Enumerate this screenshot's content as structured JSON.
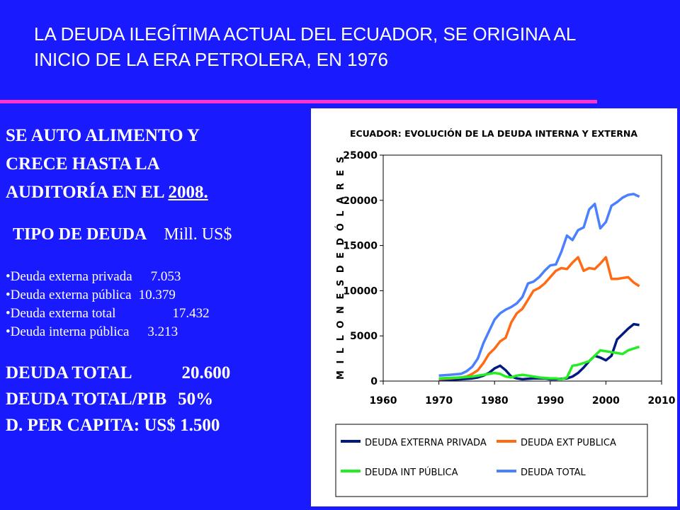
{
  "slide_title": "LA DEUDA ILEGÍTIMA ACTUAL DEL ECUADOR, SE ORIGINA AL INICIO DE LA ERA PETROLERA, EN 1976",
  "left": {
    "headline_1": "SE AUTO ALIMENTO Y",
    "headline_2": "CRECE HASTA LA",
    "headline_3": "AUDITORÍA EN EL ",
    "headline_year": "2008.",
    "tipo_label": "TIPO DE DEUDA",
    "tipo_unit": "Mill. US$",
    "items": [
      {
        "label": "Deuda externa privada",
        "value": "7.053"
      },
      {
        "label": "Deuda externa pública",
        "value": "10.379"
      },
      {
        "label": "Deuda externa total",
        "value": "17.432"
      },
      {
        "label": "Deuda interna pública",
        "value": "3.213"
      }
    ],
    "total_label": "DEUDA TOTAL",
    "total_value": "20.600",
    "pib_label": "DEUDA TOTAL/PIB",
    "pib_value": "50%",
    "per_capita_label": "D. PER CAPITA:",
    "per_capita_value": "US$ 1.500"
  },
  "chart_data": {
    "type": "line",
    "title": "ECUADOR: EVOLUCIÓN DE LA DEUDA INTERNA Y EXTERNA",
    "ylabel": "M I L L O N E S D E D Ó L A R E S",
    "xlabel": "",
    "xlim": [
      1960,
      2010
    ],
    "ylim": [
      0,
      25000
    ],
    "x_ticks": [
      1960,
      1970,
      1980,
      1990,
      2000,
      2010
    ],
    "y_ticks": [
      0,
      5000,
      10000,
      15000,
      20000,
      25000
    ],
    "grid": false,
    "legend_position": "bottom",
    "series": [
      {
        "name": "DEUDA EXTERNA PRIVADA",
        "color": "#001a80",
        "x": [
          1970,
          1972,
          1974,
          1976,
          1977,
          1978,
          1979,
          1980,
          1981,
          1982,
          1983,
          1984,
          1985,
          1986,
          1987,
          1988,
          1989,
          1990,
          1991,
          1992,
          1993,
          1994,
          1995,
          1996,
          1997,
          1998,
          1999,
          2000,
          2001,
          2002,
          2003,
          2004,
          2005,
          2006
        ],
        "y": [
          100,
          150,
          200,
          300,
          400,
          600,
          900,
          1400,
          1700,
          1200,
          500,
          300,
          200,
          250,
          300,
          300,
          300,
          200,
          200,
          250,
          300,
          500,
          900,
          1500,
          2200,
          2800,
          2600,
          2300,
          2800,
          4600,
          5200,
          5800,
          6300,
          6200
        ]
      },
      {
        "name": "DEUDA EXT PUBLICA",
        "color": "#ff6a13",
        "x": [
          1970,
          1971,
          1972,
          1973,
          1974,
          1975,
          1976,
          1977,
          1978,
          1979,
          1980,
          1981,
          1982,
          1983,
          1984,
          1985,
          1986,
          1987,
          1988,
          1989,
          1990,
          1991,
          1992,
          1993,
          1994,
          1995,
          1996,
          1997,
          1998,
          1999,
          2000,
          2001,
          2002,
          2003,
          2004,
          2005,
          2006
        ],
        "y": [
          200,
          250,
          300,
          350,
          400,
          500,
          800,
          1200,
          2000,
          3000,
          3600,
          4400,
          4800,
          6500,
          7500,
          8000,
          9000,
          10000,
          10300,
          10800,
          11500,
          12200,
          12500,
          12400,
          13100,
          13700,
          12200,
          12500,
          12400,
          13000,
          13700,
          11300,
          11300,
          11400,
          11500,
          10900,
          10500
        ]
      },
      {
        "name": "DEUDA INT PÚBLICA",
        "color": "#22ee22",
        "x": [
          1970,
          1972,
          1974,
          1976,
          1978,
          1980,
          1981,
          1982,
          1983,
          1984,
          1985,
          1986,
          1987,
          1988,
          1989,
          1990,
          1991,
          1992,
          1993,
          1994,
          1995,
          1996,
          1997,
          1998,
          1999,
          2000,
          2001,
          2002,
          2003,
          2004,
          2005,
          2006
        ],
        "y": [
          300,
          350,
          400,
          500,
          700,
          900,
          800,
          500,
          400,
          600,
          700,
          600,
          500,
          400,
          350,
          300,
          300,
          200,
          400,
          1700,
          1800,
          2000,
          2200,
          2800,
          3400,
          3300,
          3200,
          3100,
          3000,
          3400,
          3600,
          3800
        ]
      },
      {
        "name": "DEUDA TOTAL",
        "color": "#4a7fff",
        "x": [
          1970,
          1972,
          1974,
          1975,
          1976,
          1977,
          1978,
          1979,
          1980,
          1981,
          1982,
          1983,
          1984,
          1985,
          1986,
          1987,
          1988,
          1989,
          1990,
          1991,
          1992,
          1993,
          1994,
          1995,
          1996,
          1997,
          1998,
          1999,
          2000,
          2001,
          2002,
          2003,
          2004,
          2005,
          2006
        ],
        "y": [
          600,
          700,
          800,
          1100,
          1600,
          2500,
          4200,
          5500,
          6800,
          7500,
          7900,
          8200,
          8600,
          9300,
          10800,
          11000,
          11500,
          12200,
          12800,
          12900,
          14300,
          16100,
          15600,
          16700,
          17000,
          19000,
          19600,
          16900,
          17600,
          19400,
          19800,
          20300,
          20600,
          20700,
          20400
        ]
      }
    ]
  }
}
